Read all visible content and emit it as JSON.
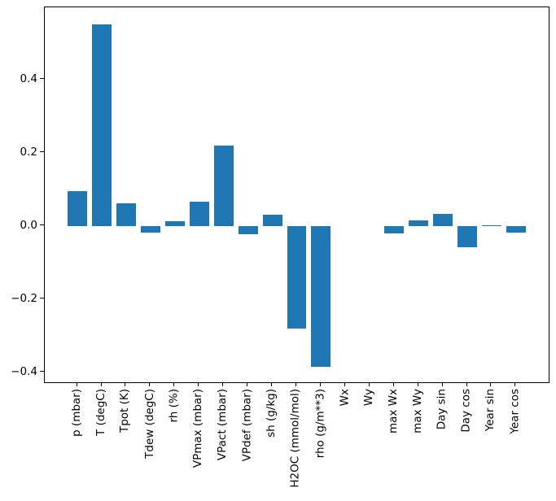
{
  "chart_data": {
    "type": "bar",
    "title": "",
    "xlabel": "",
    "ylabel": "",
    "categories": [
      "p (mbar)",
      "T (degC)",
      "Tpot (K)",
      "Tdew (degC)",
      "rh (%)",
      "VPmax (mbar)",
      "VPact (mbar)",
      "VPdef (mbar)",
      "sh (g/kg)",
      "H2OC (mmol/mol)",
      "rho (g/m**3)",
      "Wx",
      "Wy",
      "max Wx",
      "max Wy",
      "Day sin",
      "Day cos",
      "Year sin",
      "Year cos"
    ],
    "values": [
      0.096,
      0.55,
      0.061,
      -0.019,
      0.013,
      0.065,
      0.219,
      -0.022,
      0.031,
      -0.28,
      -0.384,
      0.0,
      0.0,
      -0.02,
      0.015,
      0.032,
      -0.059,
      0.002,
      -0.019
    ],
    "bar_color": "#1f77b4",
    "bar_width_units": 0.8,
    "yticks": [
      {
        "v": 0.4,
        "label": "0.4"
      },
      {
        "v": 0.2,
        "label": "0.2"
      },
      {
        "v": 0.0,
        "label": "0.0"
      },
      {
        "v": -0.2,
        "label": "−0.2"
      },
      {
        "v": -0.4,
        "label": "−0.4"
      }
    ],
    "ylim": [
      -0.4273,
      0.5971
    ],
    "xlim": [
      -1.34,
      19.34
    ],
    "grid": false,
    "legend": "none"
  }
}
